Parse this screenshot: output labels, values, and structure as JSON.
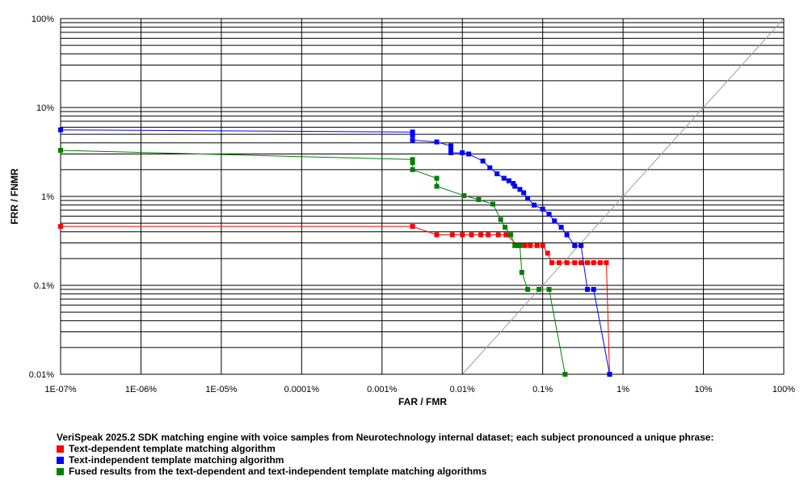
{
  "chart_data": {
    "type": "line",
    "x_scale": "log",
    "y_scale": "log",
    "xlabel": "FAR / FMR",
    "ylabel": "FRR / FNMR",
    "xlim": [
      1e-07,
      100
    ],
    "ylim": [
      0.01,
      100
    ],
    "grid": true,
    "x_ticks": [
      {
        "value": 1e-07,
        "label": "1E-07%"
      },
      {
        "value": 1e-06,
        "label": "1E-06%"
      },
      {
        "value": 1e-05,
        "label": "1E-05%"
      },
      {
        "value": 0.0001,
        "label": "0.0001%"
      },
      {
        "value": 0.001,
        "label": "0.001%"
      },
      {
        "value": 0.01,
        "label": "0.01%"
      },
      {
        "value": 0.1,
        "label": "0.1%"
      },
      {
        "value": 1,
        "label": "1%"
      },
      {
        "value": 10,
        "label": "10%"
      },
      {
        "value": 100,
        "label": "100%"
      }
    ],
    "y_ticks": [
      {
        "value": 100,
        "label": "100%"
      },
      {
        "value": 10,
        "label": "10%"
      },
      {
        "value": 1,
        "label": "1%"
      },
      {
        "value": 0.1,
        "label": "0.1%"
      },
      {
        "value": 0.01,
        "label": "0.01%"
      }
    ],
    "legend_title": "VeriSpeak 2025.2 SDK matching engine with voice samples from Neurotechnology internal dataset; each subject pronounced a unique phrase:",
    "legend_position": "bottom-left",
    "series": [
      {
        "name": "Text-dependent template matching algorithm",
        "color": "#ff0000",
        "points": [
          [
            1e-07,
            0.46
          ],
          [
            0.0024,
            0.46
          ],
          [
            0.0048,
            0.37
          ],
          [
            0.0075,
            0.37
          ],
          [
            0.01,
            0.37
          ],
          [
            0.013,
            0.37
          ],
          [
            0.017,
            0.37
          ],
          [
            0.021,
            0.37
          ],
          [
            0.028,
            0.37
          ],
          [
            0.035,
            0.37
          ],
          [
            0.05,
            0.28
          ],
          [
            0.06,
            0.28
          ],
          [
            0.07,
            0.28
          ],
          [
            0.085,
            0.28
          ],
          [
            0.1,
            0.28
          ],
          [
            0.115,
            0.23
          ],
          [
            0.13,
            0.18
          ],
          [
            0.16,
            0.18
          ],
          [
            0.2,
            0.18
          ],
          [
            0.25,
            0.18
          ],
          [
            0.3,
            0.18
          ],
          [
            0.36,
            0.18
          ],
          [
            0.43,
            0.18
          ],
          [
            0.52,
            0.18
          ],
          [
            0.62,
            0.18
          ],
          [
            0.68,
            0.01
          ]
        ]
      },
      {
        "name": "Text-independent template matching algorithm",
        "color": "#0000ff",
        "points": [
          [
            1e-07,
            5.6
          ],
          [
            0.0024,
            5.3
          ],
          [
            0.0024,
            4.9
          ],
          [
            0.0024,
            4.3
          ],
          [
            0.0048,
            4.1
          ],
          [
            0.0072,
            3.7
          ],
          [
            0.0072,
            3.3
          ],
          [
            0.0072,
            3.1
          ],
          [
            0.01,
            3.1
          ],
          [
            0.012,
            3.0
          ],
          [
            0.018,
            2.5
          ],
          [
            0.022,
            2.1
          ],
          [
            0.027,
            1.8
          ],
          [
            0.033,
            1.6
          ],
          [
            0.038,
            1.5
          ],
          [
            0.043,
            1.4
          ],
          [
            0.045,
            1.3
          ],
          [
            0.052,
            1.2
          ],
          [
            0.058,
            1.1
          ],
          [
            0.065,
            0.95
          ],
          [
            0.078,
            0.8
          ],
          [
            0.1,
            0.72
          ],
          [
            0.12,
            0.63
          ],
          [
            0.14,
            0.53
          ],
          [
            0.17,
            0.45
          ],
          [
            0.2,
            0.37
          ],
          [
            0.25,
            0.28
          ],
          [
            0.3,
            0.28
          ],
          [
            0.36,
            0.09
          ],
          [
            0.43,
            0.09
          ],
          [
            0.68,
            0.01
          ]
        ]
      },
      {
        "name": "Fused results from the text-dependent and text-independent template matching algorithms",
        "color": "#008000",
        "points": [
          [
            1e-07,
            3.3
          ],
          [
            0.0024,
            2.6
          ],
          [
            0.0024,
            2.4
          ],
          [
            0.0024,
            2.0
          ],
          [
            0.0048,
            1.6
          ],
          [
            0.0048,
            1.3
          ],
          [
            0.0105,
            1.02
          ],
          [
            0.016,
            0.92
          ],
          [
            0.024,
            0.82
          ],
          [
            0.03,
            0.55
          ],
          [
            0.034,
            0.45
          ],
          [
            0.04,
            0.37
          ],
          [
            0.045,
            0.28
          ],
          [
            0.052,
            0.28
          ],
          [
            0.055,
            0.14
          ],
          [
            0.065,
            0.09
          ],
          [
            0.09,
            0.09
          ],
          [
            0.12,
            0.09
          ],
          [
            0.19,
            0.01
          ]
        ]
      }
    ]
  }
}
